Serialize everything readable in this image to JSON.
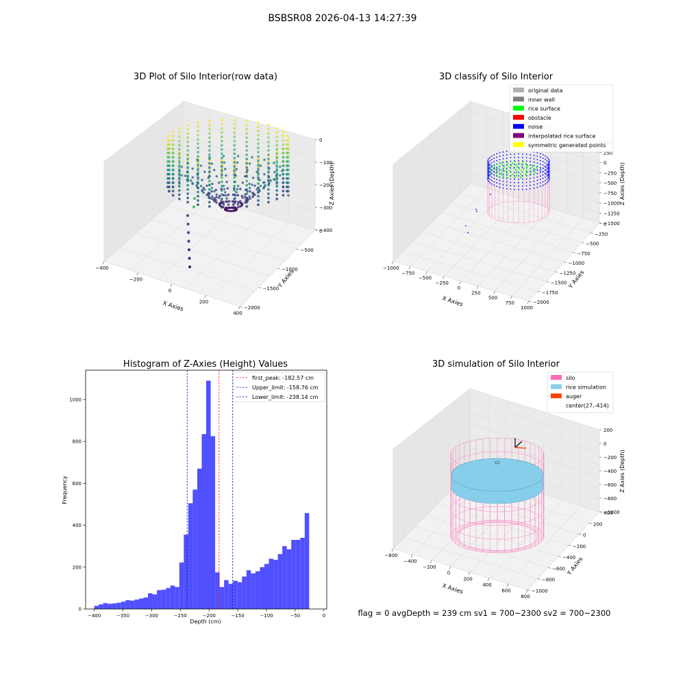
{
  "figure": {
    "suptitle": "BSBSR08 2026-04-13 14:27:39",
    "footer": "flag = 0     avgDepth = 239 cm  sv1 = 700~2300  sv2 = 700~2300"
  },
  "colors": {
    "histogram_bar": "#5050ff",
    "first_peak": "#ff0000",
    "limit_line": "#0000aa",
    "pane_face": "#f2f2f2",
    "grid": "#dddddd",
    "silo": "#ff69b4",
    "rice_simulation": "#87ceeb",
    "auger": "#ff4500"
  },
  "chart_data": [
    {
      "type": "scatter",
      "title": "3D Plot of Silo Interior(row data)",
      "xlabel": "X Axies",
      "ylabel": "Y Axies",
      "zlabel": "Z Axies (Depth)",
      "x_ticks": [
        "−400",
        "−200",
        "0",
        "200",
        "400"
      ],
      "y_ticks": [
        "−2000",
        "−1500",
        "−1000",
        "−500",
        "0"
      ],
      "z_ticks": [
        "−400",
        "−300",
        "−200",
        "−100",
        "0"
      ],
      "colormap": "viridis",
      "outlier_points_z": [
        -280,
        -320,
        -400,
        -440,
        -480,
        -520,
        -560,
        -600,
        -640
      ]
    },
    {
      "type": "scatter",
      "title": "3D classify of Silo Interior",
      "xlabel": "X Axies",
      "ylabel": "Y Axies",
      "zlabel": "Z Axies (Depth)",
      "x_ticks": [
        "−1000",
        "−750",
        "−500",
        "−250",
        "0",
        "250",
        "500",
        "750",
        "1000"
      ],
      "y_ticks": [
        "−2000",
        "−1750",
        "−1500",
        "−1250",
        "−1000",
        "−750",
        "−500",
        "−250",
        "0"
      ],
      "z_ticks": [
        "−1500",
        "−1250",
        "−1000",
        "−750",
        "−500",
        "−250",
        "0",
        "250",
        "500"
      ],
      "legend_position": "top-right",
      "legend": [
        {
          "label": "original data",
          "color": "#b0b0b0"
        },
        {
          "label": "inner wall",
          "color": "#808080"
        },
        {
          "label": "rice surface",
          "color": "#00ff00"
        },
        {
          "label": "obstacle",
          "color": "#ff0000"
        },
        {
          "label": "noise",
          "color": "#0000ff"
        },
        {
          "label": "interpolated rice surface",
          "color": "#800080"
        },
        {
          "label": "symmetric generated points",
          "color": "#ffff00"
        }
      ]
    },
    {
      "type": "bar",
      "title": "Histogram of Z-Axies (Height) Values",
      "xlabel": "Depth (cm)",
      "ylabel": "Frequency",
      "xlim": [
        -415,
        5
      ],
      "ylim": [
        0,
        1140
      ],
      "x_ticks": [
        -400,
        -350,
        -300,
        -250,
        -200,
        -150,
        -100,
        -50,
        0
      ],
      "x_tick_labels": [
        "−400",
        "−350",
        "−300",
        "−250",
        "−200",
        "−150",
        "−100",
        "−50",
        "0"
      ],
      "y_ticks": [
        0,
        200,
        400,
        600,
        800,
        1000
      ],
      "y_tick_labels": [
        "0",
        "200",
        "400",
        "600",
        "800",
        "1000"
      ],
      "bin_start": -400,
      "bin_width": 7.8,
      "values": [
        15,
        22,
        28,
        25,
        27,
        30,
        35,
        42,
        40,
        45,
        50,
        55,
        75,
        70,
        90,
        92,
        100,
        112,
        105,
        222,
        355,
        505,
        570,
        670,
        835,
        1090,
        825,
        175,
        105,
        138,
        120,
        135,
        128,
        155,
        185,
        170,
        180,
        200,
        215,
        240,
        235,
        262,
        300,
        285,
        330,
        330,
        340,
        458
      ],
      "vlines": [
        {
          "name": "first_peak",
          "label": "first_peak: -182.57 cm",
          "x": -182.57,
          "color": "#ff0000"
        },
        {
          "name": "upper-limit",
          "label": "Upper_limit: -158.76 cm",
          "x": -158.76,
          "color": "#0000aa"
        },
        {
          "name": "lower-limit",
          "label": "Lower_limit: -238.14 cm",
          "x": -238.14,
          "color": "#0000aa"
        }
      ],
      "legend_position": "top-right"
    },
    {
      "type": "scatter",
      "title": "3D simulation of Silo Interior",
      "xlabel": "X Axies",
      "ylabel": "Y Axies",
      "zlabel": "Z Axies (Depth)",
      "x_ticks": [
        "−600",
        "−400",
        "−200",
        "0",
        "200",
        "400",
        "600",
        "800"
      ],
      "y_ticks": [
        "−1000",
        "−800",
        "−600",
        "−400",
        "−200",
        "0",
        "200",
        "400"
      ],
      "z_ticks": [
        "−1000",
        "−800",
        "−600",
        "−400",
        "−200",
        "0",
        "200"
      ],
      "legend_position": "top-right",
      "legend": [
        {
          "label": "silo",
          "color": "#ff69b4"
        },
        {
          "label": "rice simulation",
          "color": "#87ceeb"
        },
        {
          "label": "auger",
          "color": "#ff4500"
        },
        {
          "label": "center(27,-414)",
          "color": ""
        }
      ]
    }
  ]
}
